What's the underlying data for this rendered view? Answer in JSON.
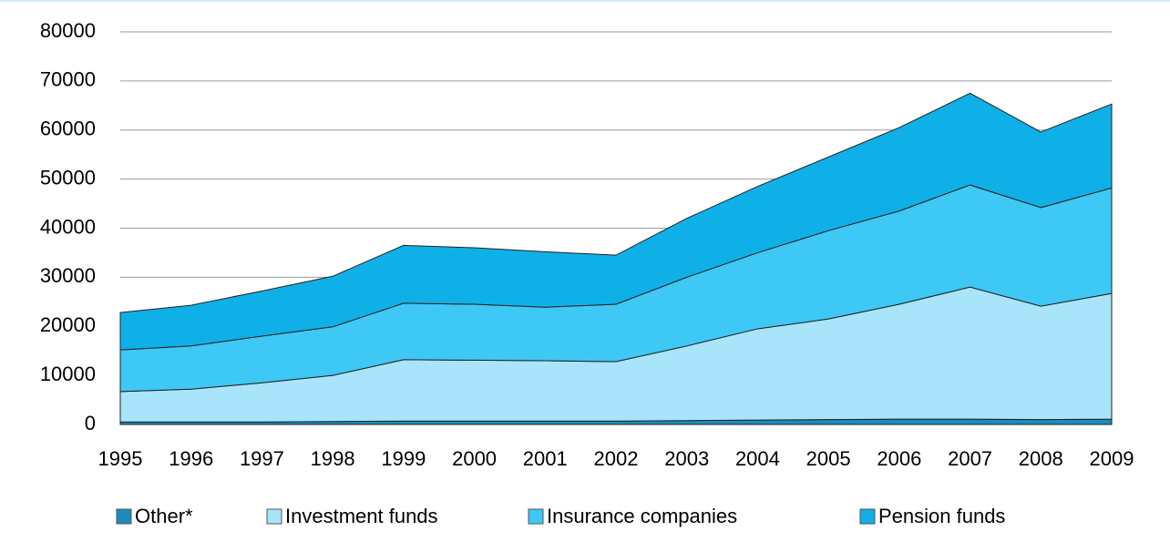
{
  "chart_data": {
    "type": "stacked_area",
    "categories": [
      "1995",
      "1996",
      "1997",
      "1998",
      "1999",
      "2000",
      "2001",
      "2002",
      "2003",
      "2004",
      "2005",
      "2006",
      "2007",
      "2008",
      "2009"
    ],
    "series": [
      {
        "name": "Other*",
        "color": "#1b8cbd",
        "values": [
          500,
          500,
          500,
          600,
          700,
          700,
          700,
          700,
          800,
          900,
          1000,
          1100,
          1100,
          1000,
          1100
        ]
      },
      {
        "name": "Investment funds",
        "color": "#a8e4fa",
        "values": [
          6200,
          6700,
          8000,
          9400,
          12500,
          12400,
          12300,
          12100,
          15200,
          18600,
          20500,
          23400,
          26900,
          23100,
          25600
        ]
      },
      {
        "name": "Insurance companies",
        "color": "#3ec8f5",
        "values": [
          8500,
          8800,
          9500,
          9900,
          11500,
          11400,
          10900,
          11700,
          14000,
          15500,
          18000,
          19000,
          20800,
          20100,
          21500
        ]
      },
      {
        "name": "Pension funds",
        "color": "#0fb0e8",
        "values": [
          7600,
          8300,
          9200,
          10300,
          11800,
          11500,
          11300,
          10000,
          12000,
          13500,
          15000,
          17000,
          18700,
          15400,
          17100
        ]
      }
    ],
    "ylim": [
      0,
      80000
    ],
    "yticks": [
      0,
      10000,
      20000,
      30000,
      40000,
      50000,
      60000,
      70000,
      80000
    ],
    "grid": true
  }
}
